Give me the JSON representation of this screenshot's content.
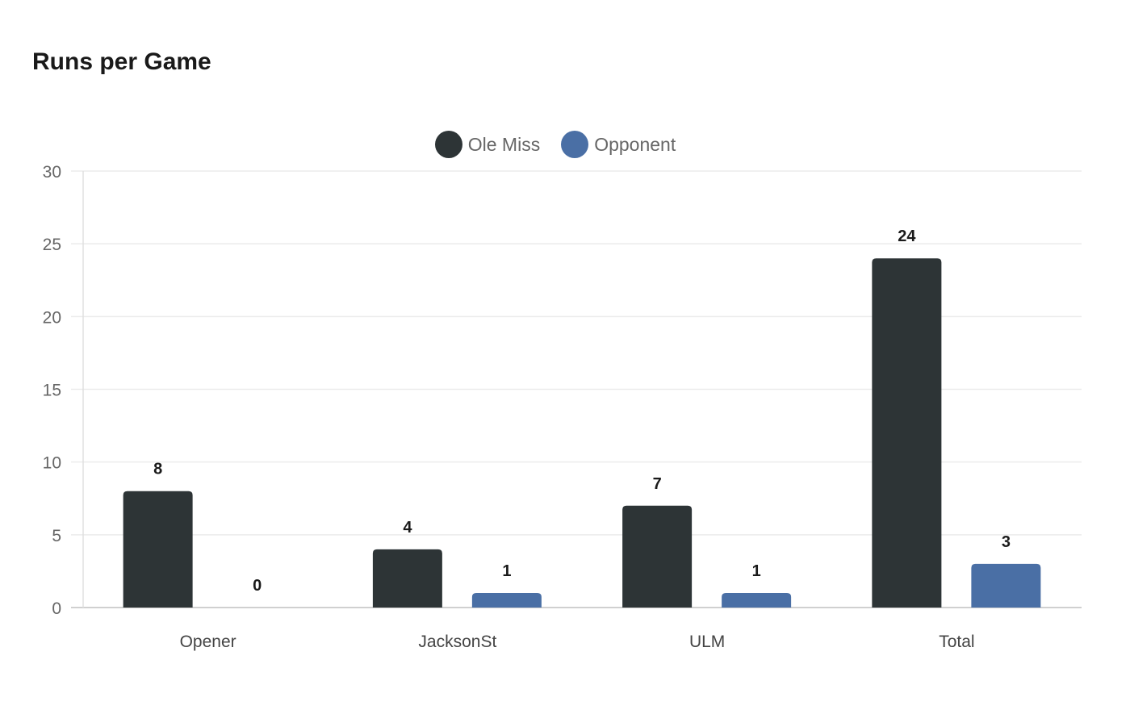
{
  "header": {
    "title": "Runs per Game"
  },
  "legend": [
    {
      "label": "Ole Miss",
      "color": "#2d3436"
    },
    {
      "label": "Opponent",
      "color": "#4a6fa5"
    }
  ],
  "chart_data": {
    "type": "bar",
    "title": "Runs per Game",
    "xlabel": "",
    "ylabel": "",
    "categories": [
      "Opener",
      "JacksonSt",
      "ULM",
      "Total"
    ],
    "series": [
      {
        "name": "Ole Miss",
        "color": "#2d3436",
        "values": [
          8,
          4,
          7,
          24
        ]
      },
      {
        "name": "Opponent",
        "color": "#4a6fa5",
        "values": [
          0,
          1,
          1,
          3
        ]
      }
    ],
    "ylim": [
      0,
      30
    ],
    "yticks": [
      0,
      5,
      10,
      15,
      20,
      25,
      30
    ],
    "grid": true,
    "legend_position": "top-center",
    "data_labels": true
  }
}
